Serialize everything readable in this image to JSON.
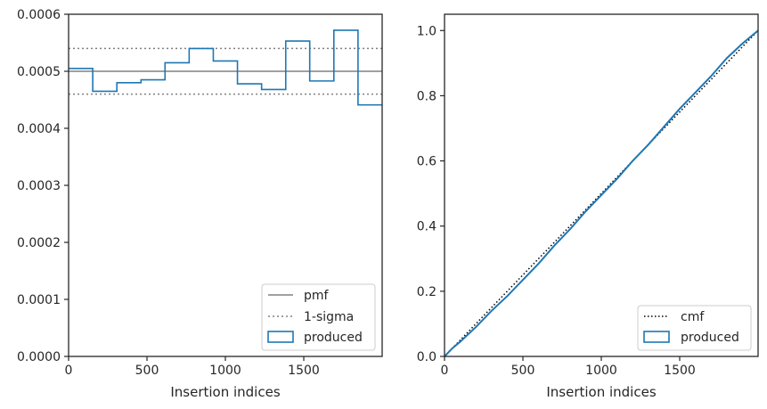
{
  "chart_data": [
    {
      "type": "step",
      "xlabel": "Insertion indices",
      "ylabel": "",
      "xlim": [
        0,
        2000
      ],
      "ylim": [
        0,
        0.0006
      ],
      "xticks": [
        0,
        500,
        1000,
        1500
      ],
      "xtick_labels": [
        "0",
        "500",
        "1000",
        "1500"
      ],
      "yticks": [
        0,
        0.0001,
        0.0002,
        0.0003,
        0.0004,
        0.0005,
        0.0006
      ],
      "ytick_labels": [
        "0.0000",
        "0.0001",
        "0.0002",
        "0.0003",
        "0.0004",
        "0.0005",
        "0.0006"
      ],
      "legend_position": "bottom-right",
      "pmf": {
        "name": "pmf",
        "value": 0.0005,
        "color": "#808080"
      },
      "sigma": {
        "name": "1-sigma",
        "values": [
          0.00046,
          0.00054
        ],
        "color": "#808080"
      },
      "produced": {
        "name": "produced",
        "color": "#1f77b4",
        "bin_edges": [
          0,
          154,
          308,
          462,
          615,
          769,
          923,
          1077,
          1231,
          1385,
          1538,
          1692,
          1846,
          2000
        ],
        "values": [
          0.000505,
          0.000465,
          0.00048,
          0.000485,
          0.000515,
          0.00054,
          0.000518,
          0.000478,
          0.000468,
          0.000553,
          0.000483,
          0.000572,
          0.000441
        ]
      }
    },
    {
      "type": "line",
      "xlabel": "Insertion indices",
      "ylabel": "",
      "xlim": [
        0,
        2000
      ],
      "ylim": [
        0,
        1.05
      ],
      "xticks": [
        0,
        500,
        1000,
        1500
      ],
      "xtick_labels": [
        "0",
        "500",
        "1000",
        "1500"
      ],
      "yticks": [
        0,
        0.2,
        0.4,
        0.6,
        0.8,
        1.0
      ],
      "ytick_labels": [
        "0.0",
        "0.2",
        "0.4",
        "0.6",
        "0.8",
        "1.0"
      ],
      "legend_position": "bottom-right",
      "cmf": {
        "name": "cmf",
        "x": [
          0,
          2000
        ],
        "y": [
          0,
          1
        ],
        "color": "#000000"
      },
      "produced": {
        "name": "produced",
        "color": "#1f77b4",
        "x": [
          0,
          50,
          100,
          200,
          300,
          400,
          500,
          600,
          700,
          800,
          900,
          1000,
          1100,
          1200,
          1300,
          1400,
          1500,
          1600,
          1700,
          1800,
          1900,
          2000
        ],
        "y": [
          0,
          0.025,
          0.045,
          0.09,
          0.14,
          0.185,
          0.235,
          0.285,
          0.34,
          0.39,
          0.445,
          0.495,
          0.545,
          0.6,
          0.65,
          0.705,
          0.76,
          0.81,
          0.86,
          0.915,
          0.96,
          1.0
        ]
      }
    }
  ]
}
